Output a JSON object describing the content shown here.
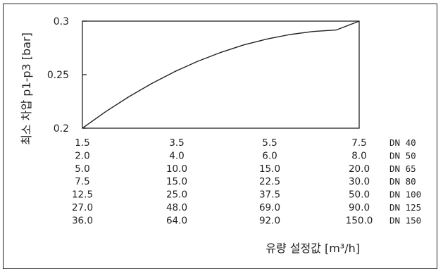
{
  "chart_data": {
    "type": "line",
    "xlabel": "유량 설정값 [m³/h]",
    "ylabel": "최소 차압 p1-p3 [bar]",
    "x_ticks": [
      "1.5",
      "3.5",
      "5.5",
      "7.5"
    ],
    "y_ticks": [
      "0.2",
      "0.25",
      "0.3"
    ],
    "xlim": [
      1.5,
      7.5
    ],
    "ylim": [
      0.2,
      0.3
    ],
    "series": [
      {
        "x": [
          1.5,
          2.0,
          2.5,
          3.0,
          3.5,
          4.0,
          4.5,
          5.0,
          5.5,
          6.0,
          6.5,
          7.0,
          7.5
        ],
        "y": [
          0.2,
          0.2153,
          0.2292,
          0.2417,
          0.2528,
          0.2625,
          0.2708,
          0.2778,
          0.2833,
          0.2875,
          0.2903,
          0.2917,
          0.3
        ]
      }
    ],
    "size_table": [
      {
        "values": [
          "1.5",
          "3.5",
          "5.5",
          "7.5"
        ],
        "dn": "DN 40"
      },
      {
        "values": [
          "2.0",
          "4.0",
          "6.0",
          "8.0"
        ],
        "dn": "DN 50"
      },
      {
        "values": [
          "5.0",
          "10.0",
          "15.0",
          "20.0"
        ],
        "dn": "DN 65"
      },
      {
        "values": [
          "7.5",
          "15.0",
          "22.5",
          "30.0"
        ],
        "dn": "DN 80"
      },
      {
        "values": [
          "12.5",
          "25.0",
          "37.5",
          "50.0"
        ],
        "dn": "DN 100"
      },
      {
        "values": [
          "27.0",
          "48.0",
          "69.0",
          "90.0"
        ],
        "dn": "DN 125"
      },
      {
        "values": [
          "36.0",
          "64.0",
          "92.0",
          "150.0"
        ],
        "dn": "DN 150"
      }
    ]
  }
}
